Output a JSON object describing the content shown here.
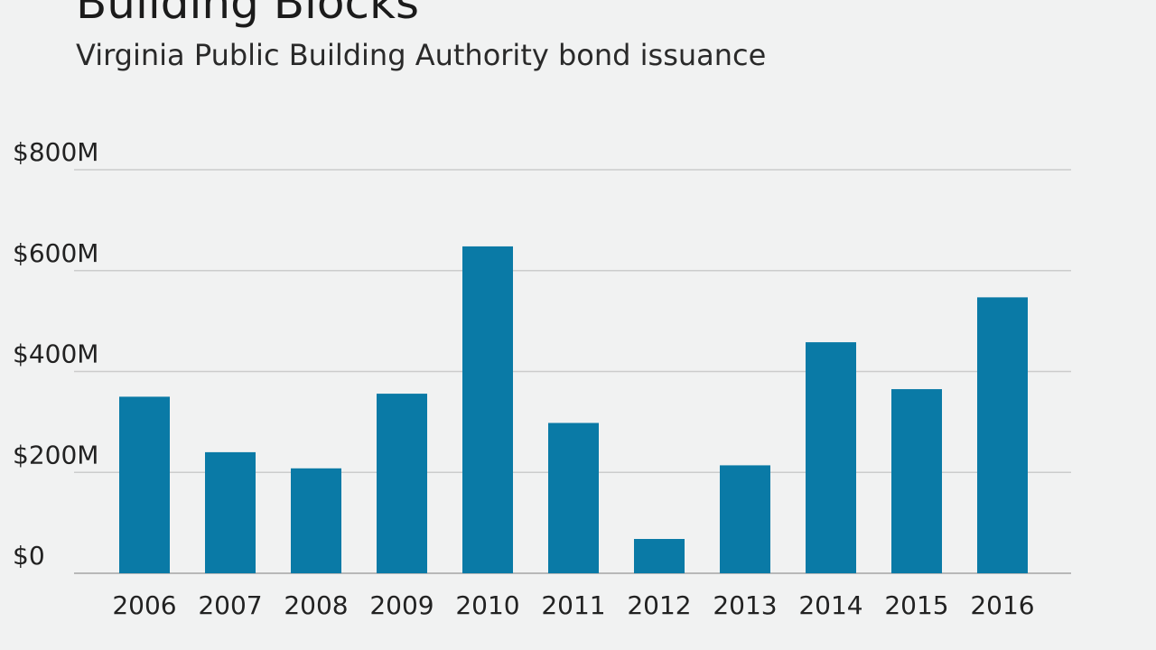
{
  "title": "Building Blocks",
  "subtitle": "Virginia Public Building Authority bond issuance",
  "colors": {
    "bar": "#0a7aa6",
    "grid": "#cccccc",
    "baseline": "#b8b8b8"
  },
  "chart_data": {
    "type": "bar",
    "categories": [
      "2006",
      "2007",
      "2008",
      "2009",
      "2010",
      "2011",
      "2012",
      "2013",
      "2014",
      "2015",
      "2016"
    ],
    "values": [
      350,
      240,
      208,
      356,
      648,
      298,
      68,
      214,
      458,
      365,
      547
    ],
    "ylim": [
      0,
      800
    ],
    "yticks": [
      {
        "value": 0,
        "label": "$0"
      },
      {
        "value": 200,
        "label": "$200M"
      },
      {
        "value": 400,
        "label": "$400M"
      },
      {
        "value": 600,
        "label": "$600M"
      },
      {
        "value": 800,
        "label": "$800M"
      }
    ],
    "xlabel": "",
    "ylabel": "",
    "grid": true
  }
}
